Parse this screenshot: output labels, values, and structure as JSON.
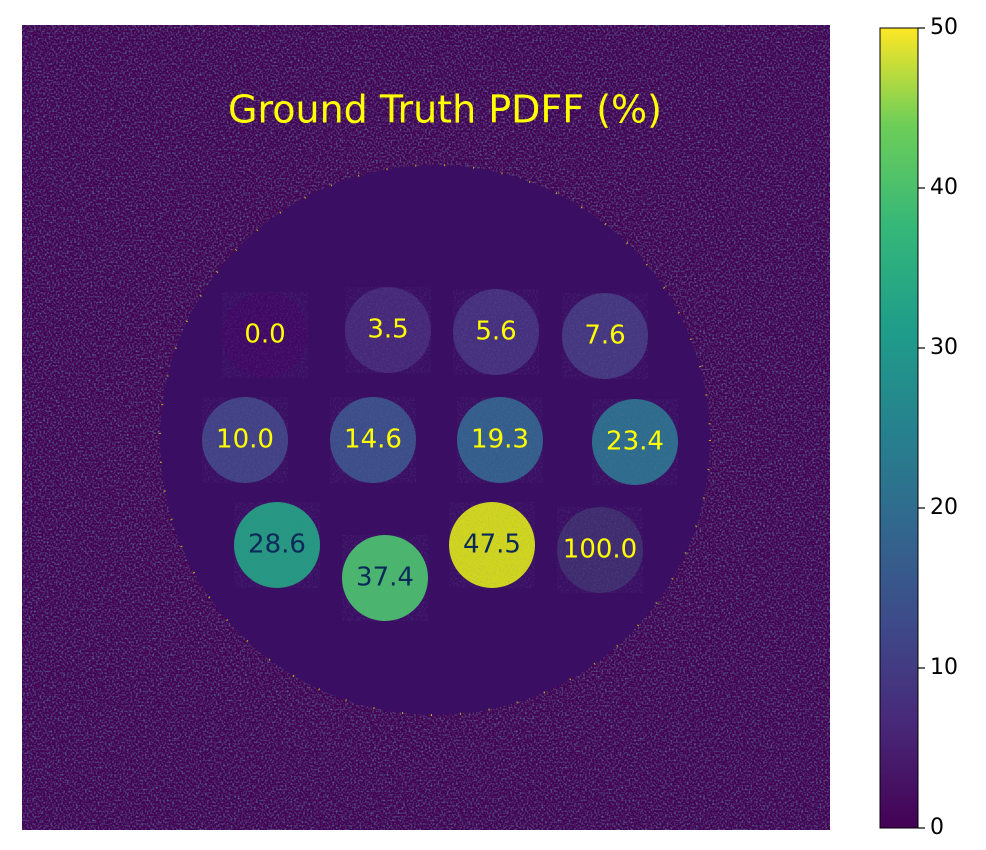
{
  "chart_data": {
    "type": "image",
    "title": "Ground Truth PDFF (%)",
    "values": [
      0,
      3.5,
      5.6,
      7.6,
      10,
      14.6,
      19.3,
      23.4,
      28.6,
      37.4,
      47.5,
      100
    ],
    "value_labels": [
      "0.0",
      "3.5",
      "5.6",
      "7.6",
      "10.0",
      "14.6",
      "19.3",
      "23.4",
      "28.6",
      "37.4",
      "47.5",
      "100.0"
    ],
    "colors": [
      "#3f0a63",
      "#472a7a",
      "#46337e",
      "#453a81",
      "#414487",
      "#3b528b",
      "#33638d",
      "#2c728e",
      "#23a083",
      "#4ac16d",
      "#d8e219",
      "#3e2e6f"
    ],
    "label_colors": [
      "#ffff00",
      "#ffff00",
      "#ffff00",
      "#ffff00",
      "#ffff00",
      "#ffff00",
      "#ffff00",
      "#ffff00",
      "#0b2a5a",
      "#0b2a5a",
      "#0b2a5a",
      "#ffff00"
    ],
    "colorbar": {
      "lim": [
        0,
        50
      ],
      "ticks": [
        0,
        10,
        20,
        30,
        40,
        50
      ]
    }
  }
}
